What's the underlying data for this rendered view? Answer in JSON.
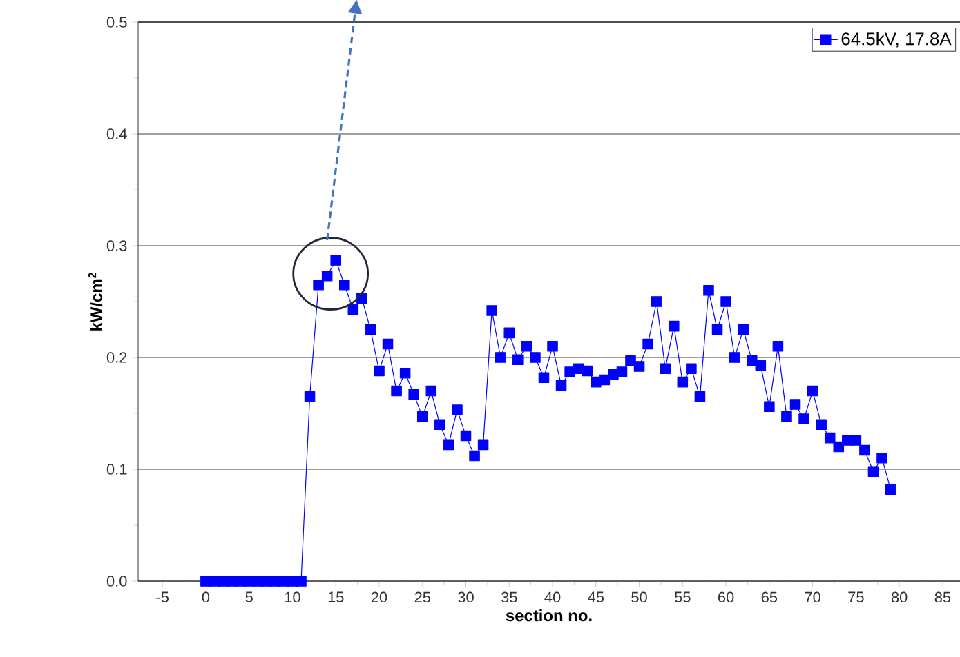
{
  "chart_data": {
    "type": "line",
    "xlabel": "section no.",
    "ylabel": "kW/cm$^{2}$",
    "x": [
      0,
      1,
      2,
      3,
      4,
      5,
      6,
      7,
      8,
      9,
      10,
      11,
      12,
      13,
      14,
      15,
      16,
      17,
      18,
      19,
      20,
      21,
      22,
      23,
      24,
      25,
      26,
      27,
      28,
      29,
      30,
      31,
      32,
      33,
      34,
      35,
      36,
      37,
      38,
      39,
      40,
      41,
      42,
      43,
      44,
      45,
      46,
      47,
      48,
      49,
      50,
      51,
      52,
      53,
      54,
      55,
      56,
      57,
      58,
      59,
      60,
      61,
      62,
      63,
      64,
      65,
      66,
      67,
      68,
      69,
      70,
      71,
      72,
      73,
      74,
      75,
      76,
      77,
      78,
      79
    ],
    "series": [
      {
        "name": "64.5kV, 17.8A",
        "color": "#0000ff",
        "values": [
          0,
          0,
          0,
          0,
          0,
          0,
          0,
          0,
          0,
          0,
          0,
          0,
          0.165,
          0.265,
          0.273,
          0.287,
          0.265,
          0.243,
          0.253,
          0.225,
          0.188,
          0.212,
          0.17,
          0.186,
          0.167,
          0.147,
          0.17,
          0.14,
          0.122,
          0.153,
          0.13,
          0.112,
          0.122,
          0.242,
          0.2,
          0.222,
          0.198,
          0.21,
          0.2,
          0.182,
          0.21,
          0.175,
          0.187,
          0.19,
          0.188,
          0.178,
          0.18,
          0.185,
          0.187,
          0.197,
          0.192,
          0.212,
          0.25,
          0.19,
          0.228,
          0.178,
          0.19,
          0.165,
          0.26,
          0.225,
          0.25,
          0.2,
          0.225,
          0.197,
          0.193,
          0.156,
          0.21,
          0.147,
          0.158,
          0.145,
          0.17,
          0.14,
          0.128,
          0.12,
          0.126,
          0.126,
          0.117,
          0.098,
          0.11,
          0.082
        ]
      }
    ],
    "xlim": [
      -7.8,
      87
    ],
    "ylim": [
      0,
      0.5
    ],
    "xticks": [
      -5,
      0,
      5,
      10,
      15,
      20,
      25,
      30,
      35,
      40,
      45,
      50,
      55,
      60,
      65,
      70,
      75,
      80,
      85
    ],
    "yticks": [
      {
        "value": 0,
        "label": "0.0"
      },
      {
        "value": 0.1,
        "label": "0.1"
      },
      {
        "value": 0.2,
        "label": "0.2"
      },
      {
        "value": 0.3,
        "label": "0.3"
      },
      {
        "value": 0.4,
        "label": "0.4"
      },
      {
        "value": 0.5,
        "label": "0.5"
      }
    ],
    "grid": "y",
    "legend": "top right",
    "marker": "square",
    "line_style": "solid"
  }
}
